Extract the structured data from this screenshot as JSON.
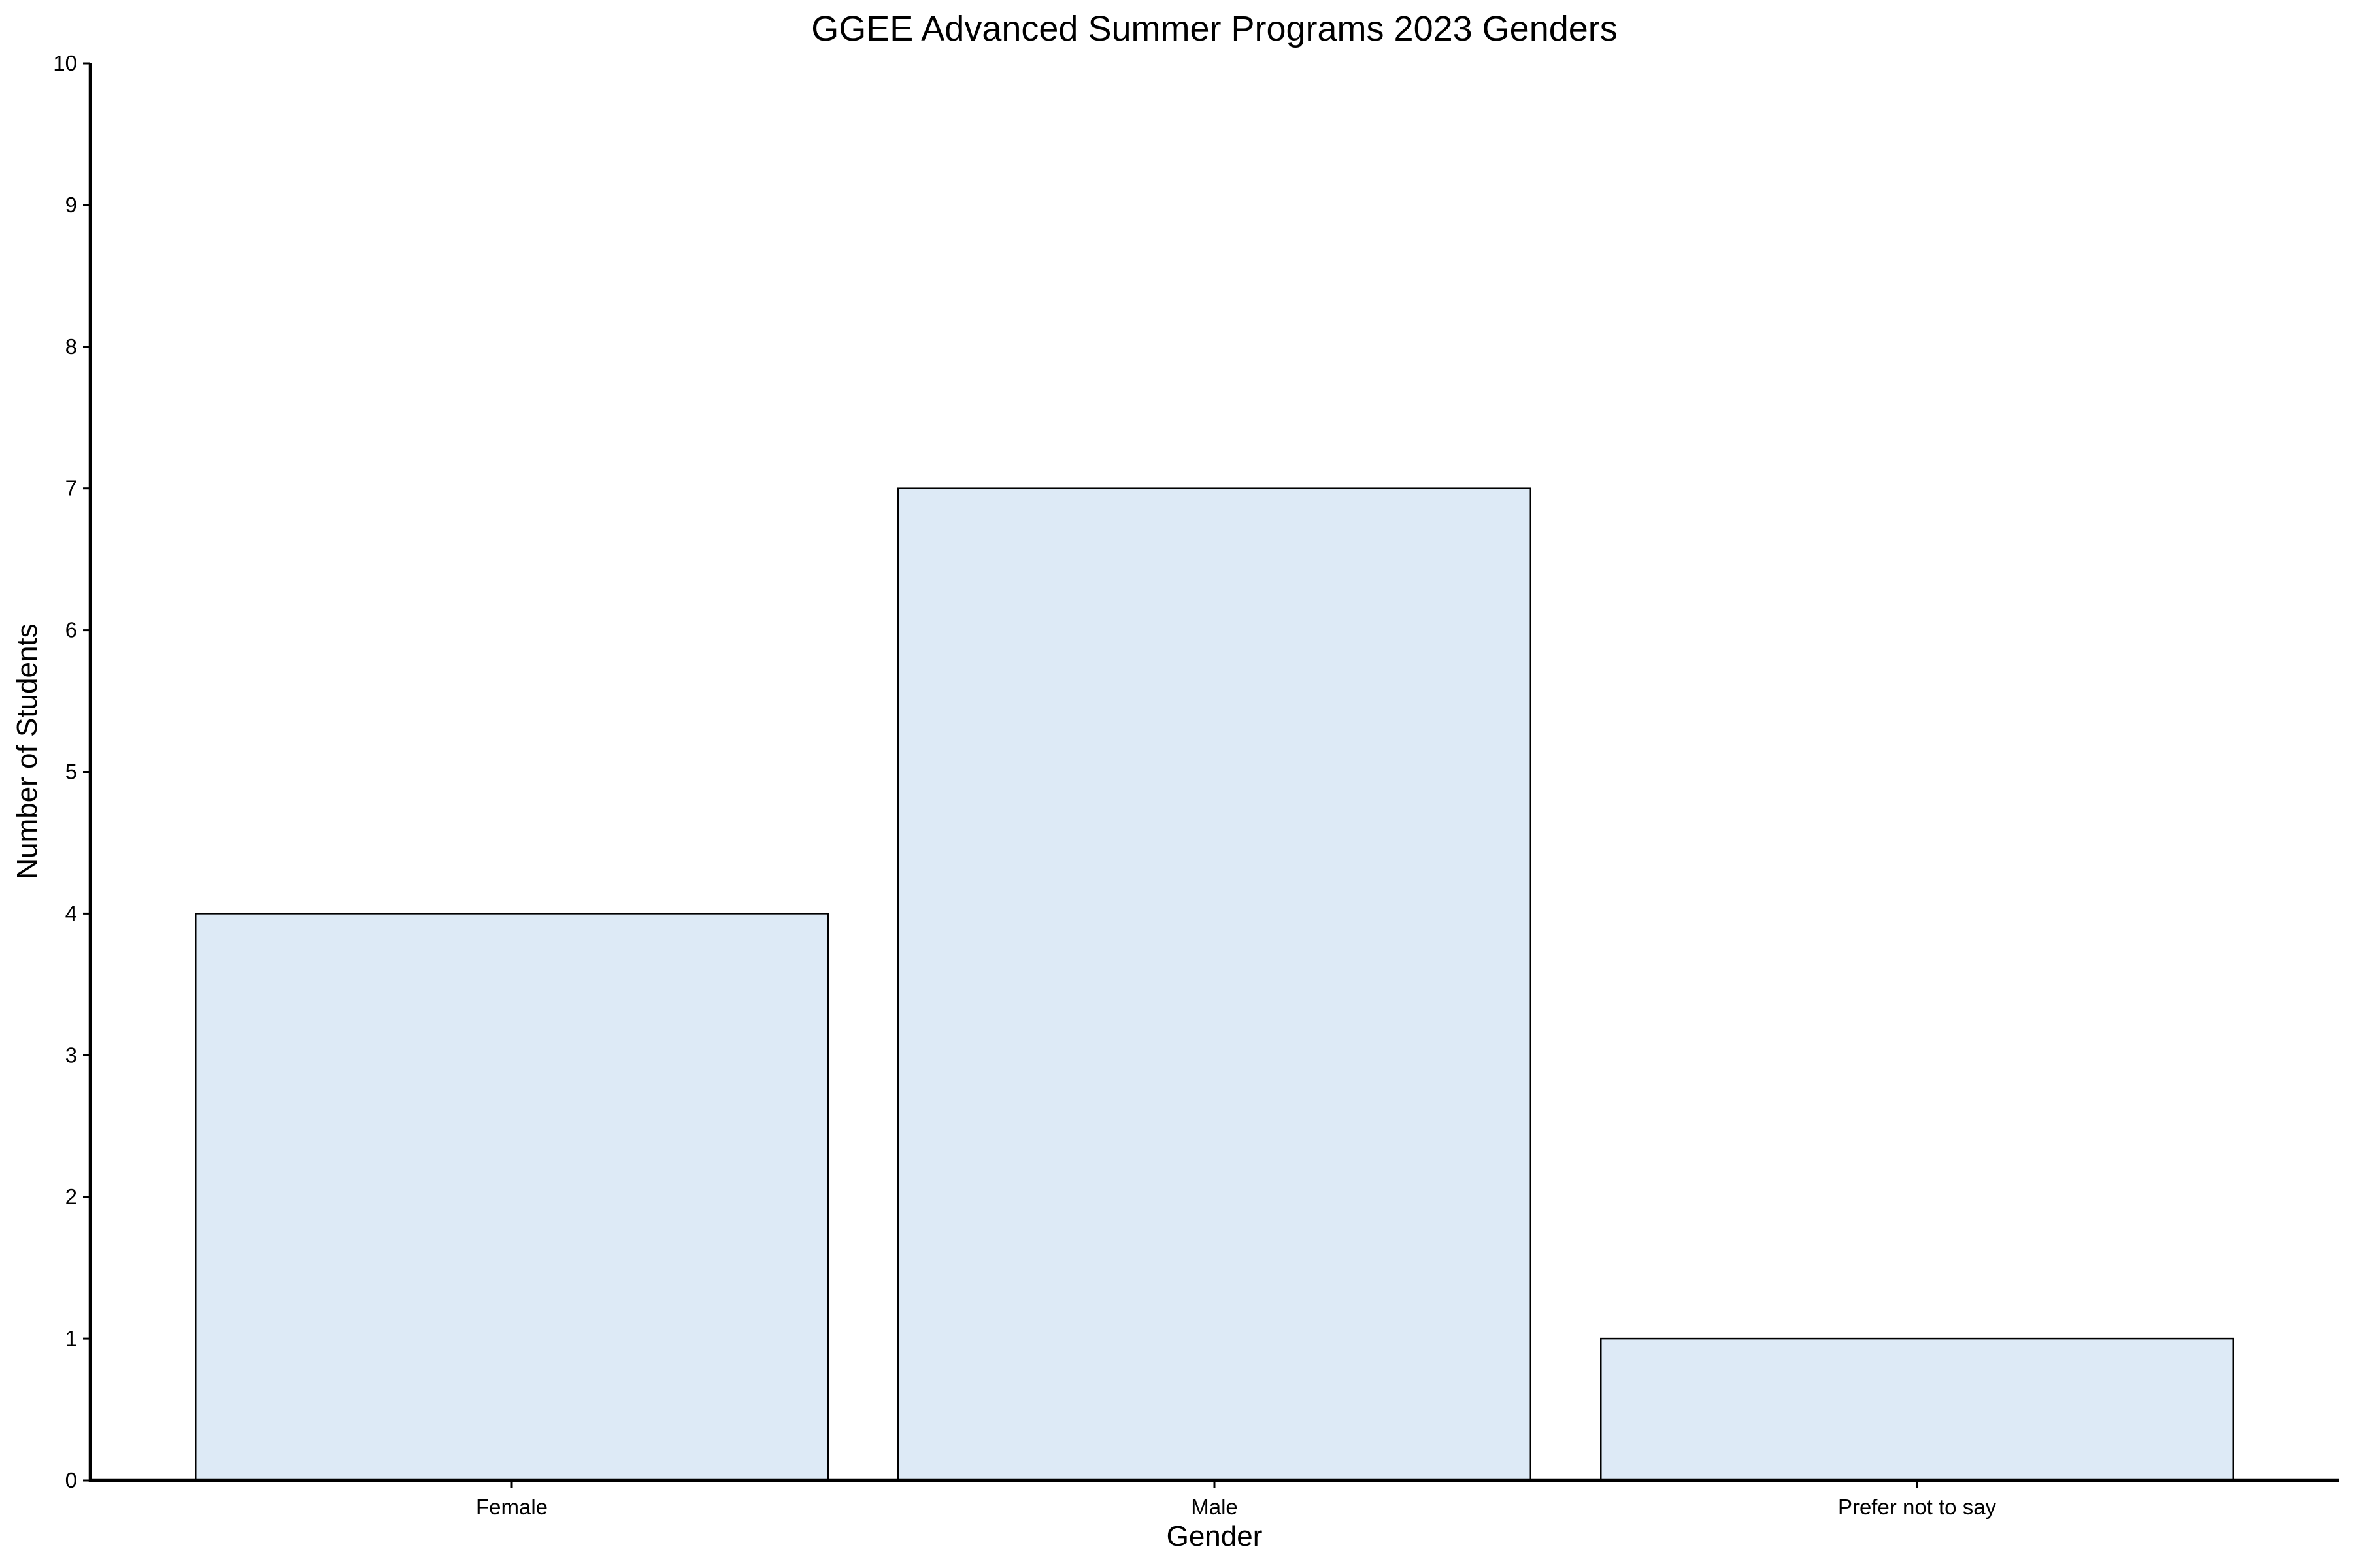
{
  "chart_data": {
    "type": "bar",
    "title": "GGEE Advanced Summer Programs 2023 Genders",
    "xlabel": "Gender",
    "ylabel": "Number of Students",
    "categories": [
      "Female",
      "Male",
      "Prefer not to say"
    ],
    "values": [
      4,
      7,
      1
    ],
    "ylim": [
      0,
      10
    ],
    "yticks": [
      0,
      1,
      2,
      3,
      4,
      5,
      6,
      7,
      8,
      9,
      10
    ],
    "grid": false,
    "legend": "none",
    "bar_color": "#ddeaf6",
    "bar_edge_color": "#000000"
  }
}
